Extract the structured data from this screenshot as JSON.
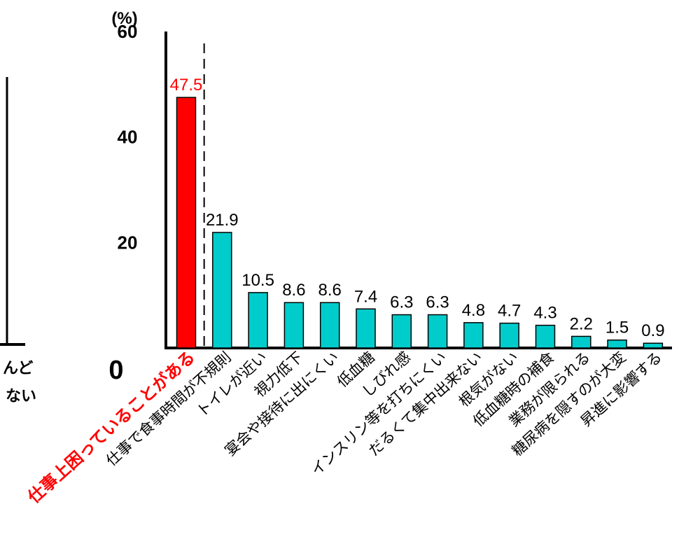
{
  "chart_data": {
    "type": "bar",
    "ylabel": "(%)",
    "ylim": [
      0,
      60
    ],
    "yticks": [
      0,
      20,
      40,
      60
    ],
    "categories": [
      "仕事上困っていることがある",
      "仕事で食事時間が不規則",
      "トイレが近い",
      "視力低下",
      "宴会や接待に出にくい",
      "低血糖",
      "しびれ感",
      "インスリン等を打ちにくい",
      "だるくて集中出来ない",
      "根気がない",
      "低血糖時の補食",
      "業務が限られる",
      "糖尿病を隠すのが大変",
      "昇進に影響する"
    ],
    "values": [
      47.5,
      21.9,
      10.5,
      8.6,
      8.6,
      7.4,
      6.3,
      6.3,
      4.8,
      4.7,
      4.3,
      2.2,
      1.5,
      0.9
    ],
    "value_labels": [
      "47.5",
      "21.9",
      "10.5",
      "8.6",
      "8.6",
      "7.4",
      "6.3",
      "6.3",
      "4.8",
      "4.7",
      "4.3",
      "2.2",
      "1.5",
      "0.9"
    ],
    "highlight_index": 0,
    "colors": {
      "highlight": "#ff0000",
      "bar": "#00cccc",
      "axis": "#000000"
    },
    "partial_left_labels": [
      "んど",
      "ない"
    ]
  }
}
